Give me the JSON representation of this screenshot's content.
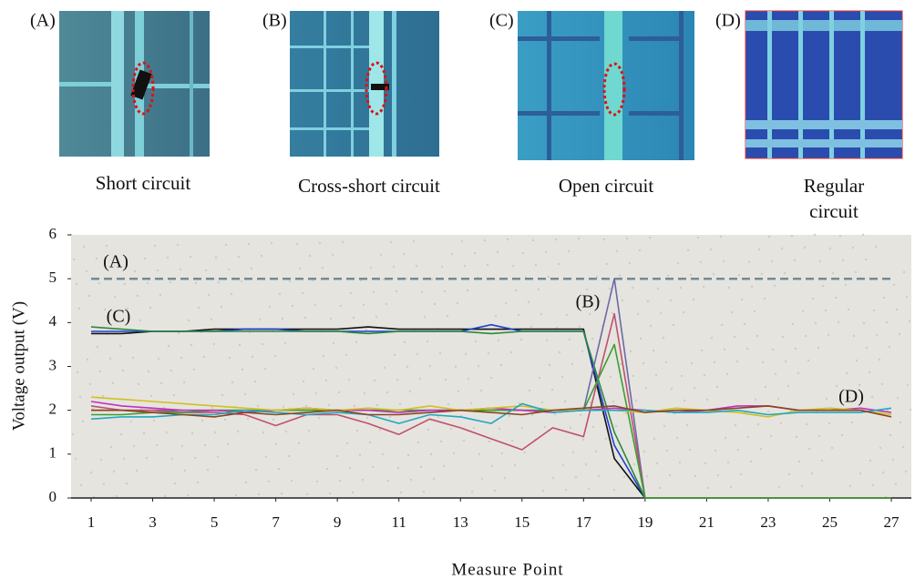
{
  "panels": [
    {
      "label": "(A)",
      "caption": "Short circuit"
    },
    {
      "label": "(B)",
      "caption": "Cross-short circuit"
    },
    {
      "label": "(C)",
      "caption": "Open circuit"
    },
    {
      "label": "(D)",
      "caption": "Regular circuit"
    }
  ],
  "chart_data": {
    "type": "line",
    "x_label": "Measure Point",
    "y_label": "Voltage output (V)",
    "annotations": [
      "(A)",
      "(C)",
      "(B)",
      "(D)"
    ],
    "x": [
      1,
      2,
      3,
      4,
      5,
      6,
      7,
      8,
      9,
      10,
      11,
      12,
      13,
      14,
      15,
      16,
      17,
      18,
      19,
      20,
      21,
      22,
      23,
      24,
      25,
      26,
      27
    ],
    "xlim": [
      1,
      27
    ],
    "xticks": [
      1,
      3,
      5,
      7,
      9,
      11,
      13,
      15,
      17,
      19,
      21,
      23,
      25,
      27
    ],
    "ylim": [
      0,
      6
    ],
    "yticks": [
      0,
      1,
      2,
      3,
      4,
      5,
      6
    ],
    "series": [
      {
        "color": "#6f8c99",
        "style": "dashed",
        "values": [
          5,
          5,
          5,
          5,
          5,
          5,
          5,
          5,
          5,
          5,
          5,
          5,
          5,
          5,
          5,
          5,
          5,
          5,
          5,
          5,
          5,
          5,
          5,
          5,
          5,
          5,
          5
        ]
      },
      {
        "color": "#111111",
        "values": [
          3.75,
          3.75,
          3.8,
          3.8,
          3.85,
          3.85,
          3.85,
          3.85,
          3.85,
          3.9,
          3.85,
          3.85,
          3.85,
          3.85,
          3.85,
          3.85,
          3.85,
          0.9,
          0,
          0,
          0,
          0,
          0,
          0,
          0,
          0,
          0
        ]
      },
      {
        "color": "#1f3fd0",
        "values": [
          3.8,
          3.8,
          3.8,
          3.8,
          3.8,
          3.85,
          3.85,
          3.8,
          3.8,
          3.8,
          3.8,
          3.8,
          3.8,
          3.95,
          3.8,
          3.8,
          3.8,
          1.2,
          0,
          0,
          0,
          0,
          0,
          0,
          0,
          0,
          0
        ]
      },
      {
        "color": "#2a8a3a",
        "values": [
          3.9,
          3.85,
          3.8,
          3.8,
          3.8,
          3.8,
          3.8,
          3.8,
          3.8,
          3.75,
          3.8,
          3.8,
          3.8,
          3.75,
          3.8,
          3.8,
          3.8,
          1.5,
          0,
          0,
          0,
          0,
          0,
          0,
          0,
          0,
          0
        ]
      },
      {
        "color": "#6a6aa8",
        "values": [
          2,
          2,
          2,
          2,
          2,
          2,
          2,
          2,
          2,
          2,
          2,
          2,
          2,
          2,
          2,
          2,
          2,
          5,
          0,
          0,
          0,
          0,
          0,
          0,
          0,
          0,
          0
        ]
      },
      {
        "color": "#c05070",
        "values": [
          2.1,
          2,
          2,
          1.95,
          1.95,
          1.9,
          1.65,
          1.9,
          1.9,
          1.7,
          1.45,
          1.8,
          1.6,
          1.35,
          1.1,
          1.6,
          1.4,
          4.2,
          0,
          0,
          0,
          0,
          0,
          0,
          0,
          0,
          0
        ]
      },
      {
        "color": "#3aa030",
        "values": [
          1.9,
          1.9,
          1.95,
          1.95,
          2,
          2,
          2,
          2,
          2,
          2,
          2,
          2,
          2,
          2,
          2,
          2,
          2,
          3.5,
          0,
          0,
          0,
          0,
          0,
          0,
          0,
          0,
          0
        ]
      },
      {
        "color": "#c030c0",
        "values": [
          2.2,
          2.1,
          2.05,
          2,
          2,
          1.95,
          2,
          2.05,
          2,
          2,
          1.95,
          2,
          2,
          2.05,
          2,
          1.95,
          2,
          2.05,
          2,
          1.95,
          2,
          2.1,
          2.1,
          2,
          2,
          2.05,
          1.95
        ]
      },
      {
        "color": "#d0c020",
        "values": [
          2.3,
          2.25,
          2.2,
          2.15,
          2.1,
          2.05,
          2,
          2.05,
          2,
          2.05,
          2,
          2.1,
          2,
          2.05,
          2.1,
          2,
          2,
          2,
          1.95,
          2.05,
          2,
          1.95,
          1.85,
          2,
          2.05,
          2,
          1.9
        ]
      },
      {
        "color": "#20a8c0",
        "values": [
          1.8,
          1.85,
          1.85,
          1.9,
          1.9,
          2,
          1.95,
          1.9,
          1.95,
          1.9,
          1.7,
          1.9,
          1.85,
          1.7,
          2.15,
          1.95,
          2,
          2,
          2,
          1.95,
          1.95,
          2,
          1.9,
          1.95,
          1.95,
          1.95,
          2.05
        ]
      },
      {
        "color": "#884422",
        "values": [
          2,
          2,
          1.95,
          1.9,
          1.85,
          1.95,
          1.9,
          1.95,
          2,
          1.9,
          1.9,
          1.95,
          2,
          1.95,
          1.9,
          2,
          2.05,
          2.1,
          1.95,
          2,
          2,
          2.05,
          2.1,
          2,
          2,
          2,
          1.85
        ]
      }
    ]
  }
}
